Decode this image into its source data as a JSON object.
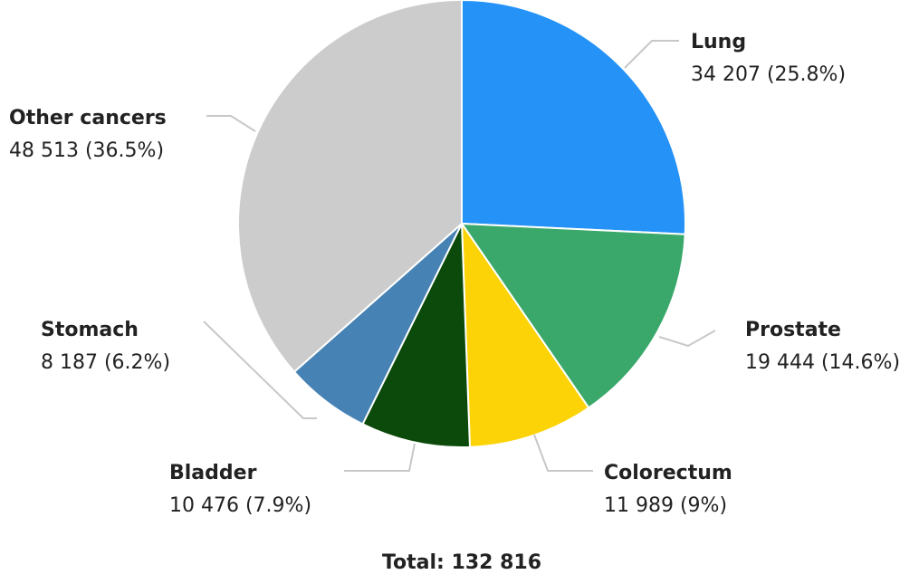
{
  "chart_data": {
    "type": "pie",
    "categories": [
      "Lung",
      "Prostate",
      "Colorectum",
      "Bladder",
      "Stomach",
      "Other cancers"
    ],
    "values": [
      34207,
      19444,
      11989,
      10476,
      8187,
      48513
    ],
    "value_labels": [
      "34 207 (25.8%)",
      "19 444 (14.6%)",
      "11 989 (9%)",
      "10 476 (7.9%)",
      "8 187 (6.2%)",
      "48 513 (36.5%)"
    ],
    "colors": [
      "#2492f7",
      "#3aa86b",
      "#fcd307",
      "#0b4a0b",
      "#4682b4",
      "#cccccc"
    ],
    "total_label": "Total: 132 816"
  }
}
